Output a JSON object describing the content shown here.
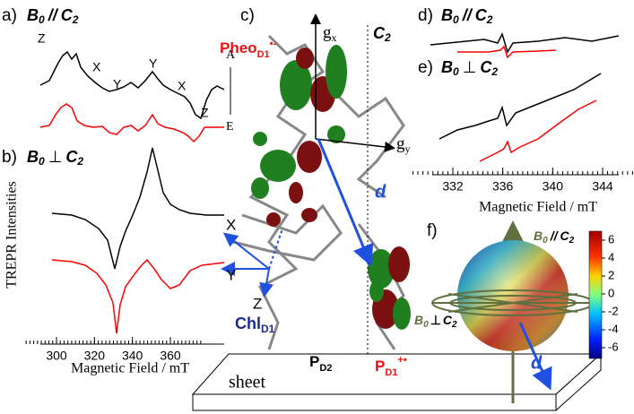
{
  "panel_a": {
    "label": "a)",
    "title": {
      "b": "B",
      "b_sub": "0",
      "rel": "//",
      "c": "C",
      "c_sub": "2"
    },
    "peaks": [
      "Z",
      "X",
      "Y",
      "Y",
      "X",
      "Z"
    ],
    "absorption": "A",
    "emission": "E"
  },
  "panel_b": {
    "label": "b)",
    "title": {
      "b": "B",
      "b_sub": "0",
      "rel": "⊥",
      "c": "C",
      "c_sub": "2"
    }
  },
  "left_axis": {
    "y_label": "TREPR Intensities",
    "x_label": "Magnetic Field / mT",
    "ticks": [
      300,
      320,
      340,
      360
    ]
  },
  "panel_c": {
    "label": "c)",
    "pheo": "Pheo",
    "pheo_sub": "D1",
    "pheo_sup": "•-",
    "gx": "g",
    "gx_sub": "x",
    "gy": "g",
    "gy_sub": "y",
    "c2": "C",
    "c2_sub": "2",
    "d": "d",
    "x": "X",
    "y": "Y",
    "z": "Z",
    "chl": "Chl",
    "chl_sub": "D1",
    "sheet": "sheet",
    "pd2": "P",
    "pd2_sub": "D2",
    "pd1": "P",
    "pd1_sub": "D1",
    "pd1_sup": "+•"
  },
  "panel_d": {
    "label": "d)",
    "title": {
      "b": "B",
      "b_sub": "0",
      "rel": "//",
      "c": "C",
      "c_sub": "2"
    }
  },
  "panel_e": {
    "label": "e)",
    "title": {
      "b": "B",
      "b_sub": "0",
      "rel": "⊥",
      "c": "C",
      "c_sub": "2"
    }
  },
  "right_axis": {
    "x_label": "Magnetic Field / mT",
    "ticks": [
      332,
      336,
      340,
      344
    ]
  },
  "panel_f": {
    "label": "f)",
    "par": {
      "b": "B",
      "b_sub": "0",
      "rel": "//",
      "c": "C",
      "c_sub": "2"
    },
    "perp": {
      "b": "B",
      "b_sub": "0",
      "rel": "⊥",
      "c": "C",
      "c_sub": "2"
    },
    "d": "d",
    "colorbar_ticks": [
      6,
      4,
      2,
      0,
      -2,
      -4,
      -6
    ]
  }
}
